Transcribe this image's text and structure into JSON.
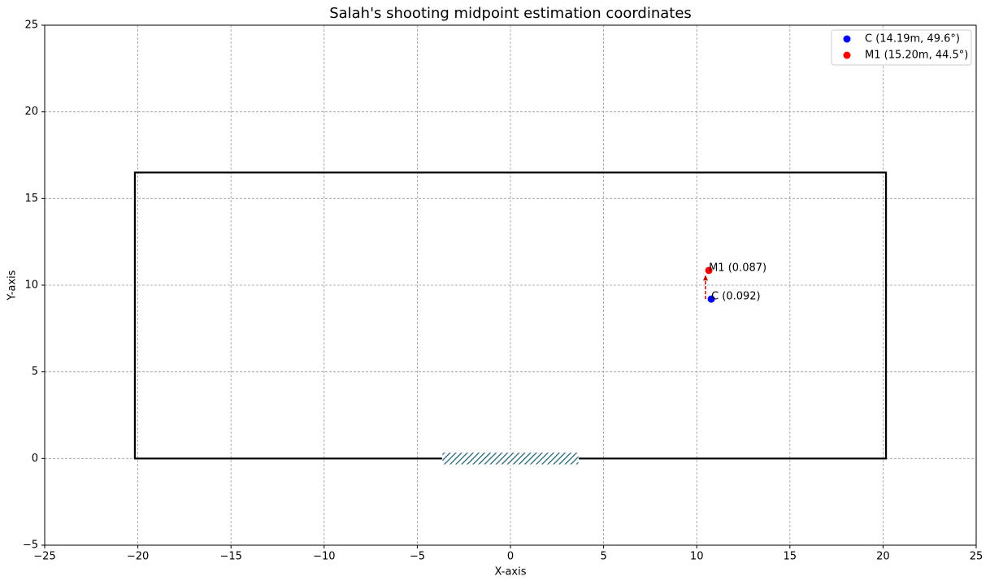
{
  "chart_data": {
    "type": "scatter",
    "title": "Salah's shooting midpoint estimation coordinates",
    "x_label": "X-axis",
    "y_label": "Y-axis",
    "xlim": [
      -25,
      25
    ],
    "ylim": [
      -5,
      25
    ],
    "xticks": [
      {
        "value": -25,
        "label": "−25"
      },
      {
        "value": -20,
        "label": "−20"
      },
      {
        "value": -15,
        "label": "−15"
      },
      {
        "value": -10,
        "label": "−10"
      },
      {
        "value": -5,
        "label": "−5"
      },
      0,
      5,
      10,
      15,
      20,
      25
    ],
    "yticks": [
      {
        "value": -5,
        "label": "−5"
      },
      0,
      5,
      10,
      15,
      20,
      25
    ],
    "grid": true,
    "legend": "upper right",
    "series": [
      {
        "name": "C (14.19m, 49.6°)",
        "color": "#0000ff",
        "x": [
          10.78
        ],
        "values": [
          9.2
        ]
      },
      {
        "name": "M1 (15.20m, 44.5°)",
        "color": "#ff0000",
        "x": [
          10.65
        ],
        "values": [
          10.85
        ]
      }
    ],
    "annotations": [
      {
        "text": "C (0.092)",
        "color": "#0000ff",
        "x": 10.78,
        "y": 9.2
      },
      {
        "text": "M1 (0.087)",
        "color": "#ff0000",
        "x": 10.65,
        "y": 10.85
      }
    ],
    "arrow": {
      "x": [
        10.47,
        10.47
      ],
      "y": [
        9.2,
        10.6
      ],
      "color": "#c00000"
    },
    "rectangles": [
      {
        "x": [
          -20.16,
          20.16
        ],
        "y": [
          0,
          16.5
        ],
        "color": "#000000"
      },
      {
        "x": [
          -3.66,
          3.66
        ],
        "y": [
          -0.35,
          0.35
        ],
        "color": "#1f5f6f"
      }
    ]
  }
}
